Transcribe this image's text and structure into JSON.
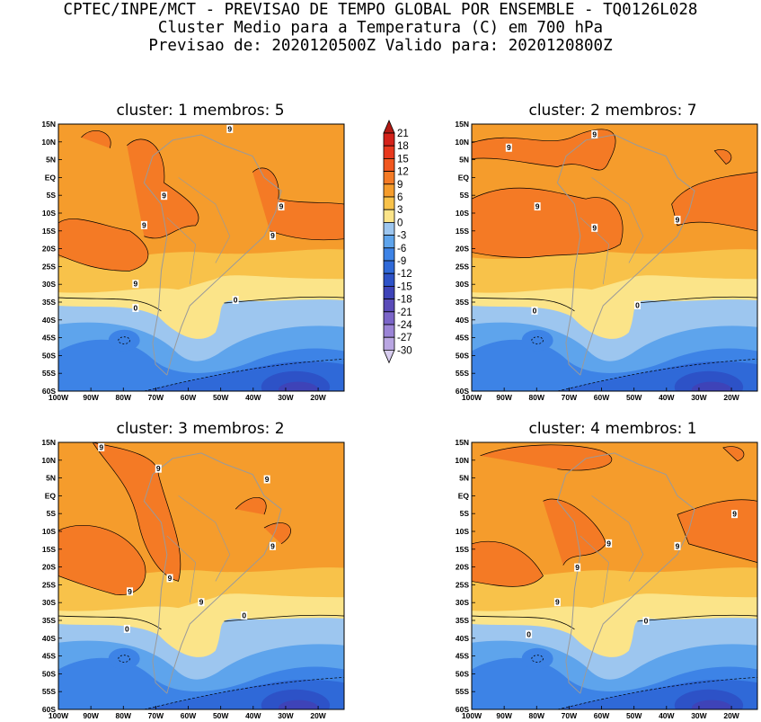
{
  "header": {
    "line1": "CPTEC/INPE/MCT - PREVISAO DE TEMPO GLOBAL POR ENSEMBLE - TQ0126L028",
    "line2": "Cluster Medio para a Temperatura (C) em 700 hPa",
    "line3": "Previsao de: 2020120500Z   Valido para: 2020120800Z"
  },
  "panels": [
    {
      "title": "cluster: 1   membros: 5"
    },
    {
      "title": "cluster: 2   membros: 7"
    },
    {
      "title": "cluster: 3   membros: 2"
    },
    {
      "title": "cluster: 4   membros: 1"
    }
  ],
  "axes": {
    "lat_labels": [
      "15N",
      "10N",
      "5N",
      "EQ",
      "5S",
      "10S",
      "15S",
      "20S",
      "25S",
      "30S",
      "35S",
      "40S",
      "45S",
      "50S",
      "55S",
      "60S"
    ],
    "lon_labels": [
      "100W",
      "90W",
      "80W",
      "70W",
      "60W",
      "50W",
      "40W",
      "30W",
      "20W"
    ]
  },
  "colorbar": {
    "labels": [
      "21",
      "18",
      "15",
      "12",
      "9",
      "6",
      "3",
      "0",
      "-3",
      "-6",
      "-9",
      "-12",
      "-15",
      "-18",
      "-21",
      "-24",
      "-27",
      "-30"
    ],
    "colors": [
      "#b21a14",
      "#d4221a",
      "#e8381d",
      "#f1571f",
      "#f47a25",
      "#f59c2c",
      "#f8c24a",
      "#fbe489",
      "#9dc6ef",
      "#5ea4ec",
      "#3d83e6",
      "#2f69d8",
      "#2d52c7",
      "#3e43b8",
      "#5a4bb8",
      "#7b65c8",
      "#9b84d6",
      "#b9a6e2",
      "#d8cdef"
    ]
  },
  "contour_labels": {
    "p1": [
      "9",
      "9",
      "9",
      "9",
      "9",
      "9",
      "0",
      "0"
    ],
    "p2": [
      "9",
      "9",
      "9",
      "9",
      "9",
      "0",
      "0"
    ],
    "p3": [
      "9",
      "9",
      "9",
      "9",
      "9",
      "9",
      "9",
      "0",
      "0"
    ],
    "p4": [
      "9",
      "9",
      "9",
      "9",
      "9",
      "0",
      "0"
    ]
  }
}
